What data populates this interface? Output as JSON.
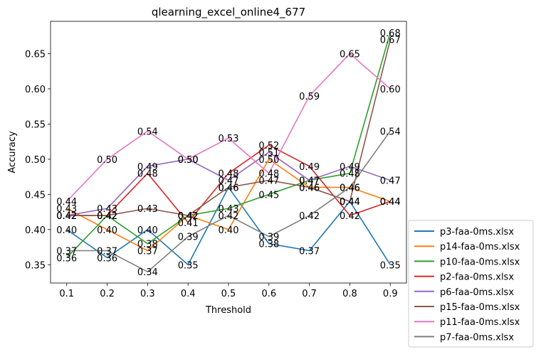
{
  "chart_data": {
    "type": "line",
    "title": "qlearning_excel_online4_677",
    "xlabel": "Threshold",
    "ylabel": "Accuracy",
    "x": [
      0.1,
      0.2,
      0.3,
      0.4,
      0.5,
      0.6,
      0.7,
      0.8,
      0.9
    ],
    "x_tick_labels": [
      "0.1",
      "0.2",
      "0.3",
      "0.4",
      "0.5",
      "0.6",
      "0.7",
      "0.8",
      "0.9"
    ],
    "y_ticks": [
      0.35,
      0.4,
      0.45,
      0.5,
      0.55,
      0.6,
      0.65
    ],
    "y_tick_labels": [
      "0.35",
      "0.40",
      "0.45",
      "0.50",
      "0.55",
      "0.60",
      "0.65"
    ],
    "xlim": [
      0.06,
      0.94
    ],
    "ylim": [
      0.324,
      0.696
    ],
    "grid": false,
    "legend_position": "outside-right-bottom",
    "series": [
      {
        "name": "p3-faa-0ms.xlsx",
        "color": "#1f77b4",
        "values": [
          0.4,
          0.36,
          0.4,
          0.35,
          0.46,
          0.38,
          0.37,
          0.44,
          0.35
        ]
      },
      {
        "name": "p14-faa-0ms.xlsx",
        "color": "#ff7f0e",
        "values": [
          0.43,
          0.4,
          0.37,
          0.42,
          0.4,
          0.5,
          0.46,
          0.46,
          0.44
        ]
      },
      {
        "name": "p10-faa-0ms.xlsx",
        "color": "#2ca02c",
        "values": [
          0.36,
          0.42,
          0.38,
          0.42,
          0.43,
          0.45,
          0.47,
          0.48,
          0.68
        ]
      },
      {
        "name": "p2-faa-0ms.xlsx",
        "color": "#d62728",
        "values": [
          0.42,
          0.42,
          0.48,
          0.41,
          0.48,
          0.52,
          0.49,
          0.42,
          0.44
        ]
      },
      {
        "name": "p6-faa-0ms.xlsx",
        "color": "#9467bd",
        "values": [
          0.42,
          0.43,
          0.49,
          0.5,
          0.47,
          0.51,
          0.47,
          0.49,
          0.47
        ]
      },
      {
        "name": "p15-faa-0ms.xlsx",
        "color": "#8c564b",
        "values": [
          0.42,
          0.42,
          0.43,
          0.42,
          0.46,
          0.47,
          0.46,
          0.44,
          0.67
        ]
      },
      {
        "name": "p11-faa-0ms.xlsx",
        "color": "#e377c2",
        "values": [
          0.44,
          0.5,
          0.54,
          0.5,
          0.53,
          0.48,
          0.59,
          0.65,
          0.6
        ]
      },
      {
        "name": "p7-faa-0ms.xlsx",
        "color": "#7f7f7f",
        "values": [
          0.37,
          0.37,
          0.34,
          0.39,
          0.42,
          0.39,
          0.42,
          0.46,
          0.54
        ]
      }
    ]
  }
}
